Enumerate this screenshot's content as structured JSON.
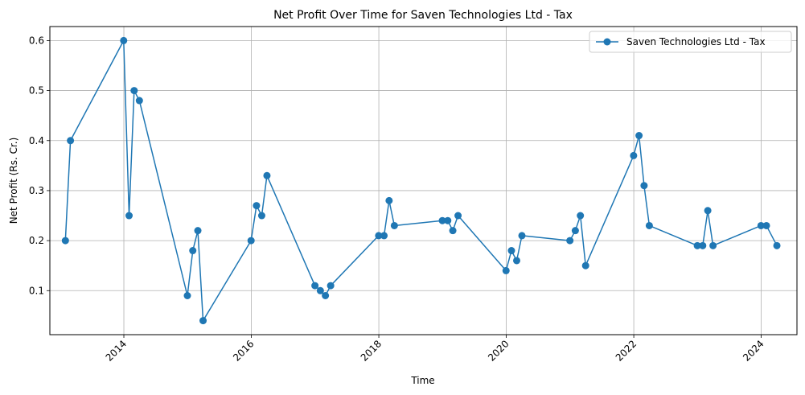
{
  "chart_data": {
    "type": "line",
    "title": "Net Profit Over Time for Saven Technologies Ltd - Tax",
    "xlabel": "Time",
    "ylabel": "Net Profit (Rs. Cr.)",
    "grid": true,
    "legend_position": "top-right",
    "xlim": [
      "2012-11-03",
      "2024-07-24"
    ],
    "ylim": [
      0.012,
      0.628
    ],
    "x_ticks": [
      "2014",
      "2016",
      "2018",
      "2020",
      "2022",
      "2024"
    ],
    "y_ticks": [
      "0.1",
      "0.2",
      "0.3",
      "0.4",
      "0.5",
      "0.6"
    ],
    "series": [
      {
        "name": "Saven Technologies Ltd - Tax",
        "color": "#1f77b4",
        "marker": "circle",
        "x": [
          "2013-01-31",
          "2013-03-01",
          "2013-12-31",
          "2014-01-31",
          "2014-03-01",
          "2014-03-31",
          "2014-12-31",
          "2015-01-31",
          "2015-03-01",
          "2015-03-31",
          "2015-12-31",
          "2016-01-31",
          "2016-03-01",
          "2016-03-31",
          "2016-12-31",
          "2017-01-31",
          "2017-03-01",
          "2017-03-31",
          "2017-12-31",
          "2018-01-31",
          "2018-03-01",
          "2018-03-31",
          "2018-12-31",
          "2019-01-31",
          "2019-03-01",
          "2019-03-31",
          "2019-12-31",
          "2020-01-31",
          "2020-03-01",
          "2020-03-31",
          "2020-12-31",
          "2021-01-31",
          "2021-03-01",
          "2021-03-31",
          "2021-12-31",
          "2022-01-31",
          "2022-03-01",
          "2022-03-31",
          "2022-12-31",
          "2023-01-31",
          "2023-03-01",
          "2023-03-31",
          "2023-12-31",
          "2024-01-31",
          "2024-03-31"
        ],
        "y": [
          0.2,
          0.4,
          0.6,
          0.25,
          0.5,
          0.48,
          0.09,
          0.18,
          0.22,
          0.04,
          0.2,
          0.27,
          0.25,
          0.33,
          0.11,
          0.1,
          0.09,
          0.11,
          0.21,
          0.21,
          0.28,
          0.23,
          0.24,
          0.24,
          0.22,
          0.25,
          0.14,
          0.18,
          0.16,
          0.21,
          0.2,
          0.22,
          0.25,
          0.15,
          0.37,
          0.41,
          0.31,
          0.23,
          0.19,
          0.19,
          0.26,
          0.19,
          0.23,
          0.23,
          0.19
        ]
      }
    ]
  }
}
